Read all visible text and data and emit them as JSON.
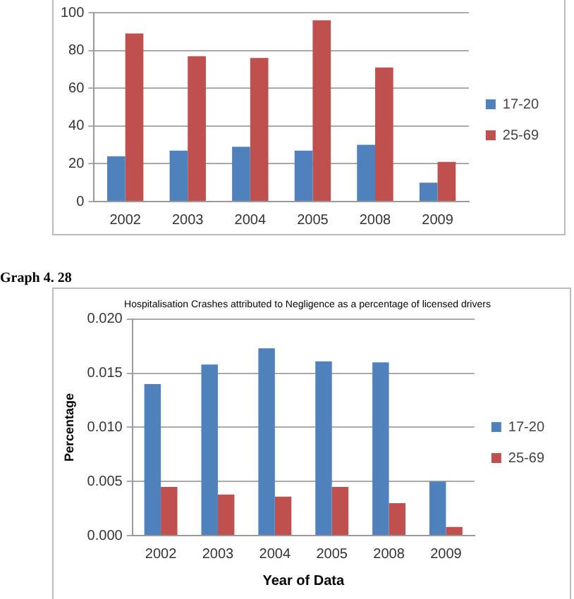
{
  "chart_data": [
    {
      "type": "bar",
      "categories": [
        "2002",
        "2003",
        "2004",
        "2005",
        "2008",
        "2009"
      ],
      "series": [
        {
          "name": "17-20",
          "color": "#4f81bd",
          "values": [
            24,
            27,
            29,
            27,
            30,
            10
          ]
        },
        {
          "name": "25-69",
          "color": "#c0504d",
          "values": [
            89,
            77,
            76,
            96,
            71,
            21
          ]
        }
      ],
      "ylim": [
        0,
        100
      ],
      "yticks": [
        0,
        20,
        40,
        60,
        80,
        100
      ],
      "grid": "y",
      "legend": "right"
    },
    {
      "type": "bar",
      "title": "Hospitalisation Crashes attributed to Negligence as a percentage of licensed drivers",
      "xlabel": "Year of Data",
      "ylabel": "Percentage",
      "annotations": [
        "Graph 4. 28"
      ],
      "categories": [
        "2002",
        "2003",
        "2004",
        "2005",
        "2008",
        "2009"
      ],
      "series": [
        {
          "name": "17-20",
          "color": "#4f81bd",
          "values": [
            0.014,
            0.0158,
            0.0173,
            0.0161,
            0.016,
            0.005
          ]
        },
        {
          "name": "25-69",
          "color": "#c0504d",
          "values": [
            0.0045,
            0.0038,
            0.0036,
            0.0045,
            0.003,
            0.0008
          ]
        }
      ],
      "ylim": [
        0,
        0.02
      ],
      "yticks": [
        {
          "value": 0,
          "label": "0.000"
        },
        {
          "value": 0.005,
          "label": "0.005"
        },
        {
          "value": 0.01,
          "label": "0.010"
        },
        {
          "value": 0.015,
          "label": "0.015"
        },
        {
          "value": 0.02,
          "label": "0.020"
        }
      ],
      "grid": "y",
      "legend": "right"
    }
  ]
}
